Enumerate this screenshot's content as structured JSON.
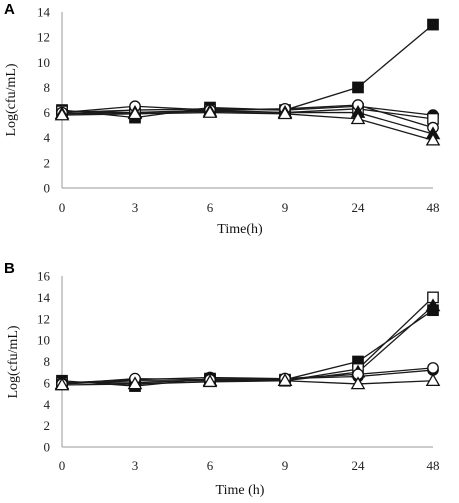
{
  "chart_data": [
    {
      "type": "line",
      "panel_label": "A",
      "categories": [
        "0",
        "3",
        "6",
        "9",
        "24",
        "48"
      ],
      "xlabel": "Time(h)",
      "ylabel": "Log(cfu/mL)",
      "ylim": [
        0,
        14
      ],
      "yticks": [
        "0",
        "2",
        "4",
        "6",
        "8",
        "10",
        "12",
        "14"
      ],
      "grid": false,
      "series": [
        {
          "marker": "filled-square",
          "values": [
            6.2,
            5.6,
            6.4,
            6.2,
            8.0,
            13.0
          ]
        },
        {
          "marker": "filled-circle",
          "values": [
            6.0,
            6.2,
            6.3,
            6.2,
            6.5,
            5.8
          ]
        },
        {
          "marker": "open-square",
          "values": [
            6.1,
            6.0,
            6.2,
            6.0,
            6.3,
            5.5
          ]
        },
        {
          "marker": "open-circle",
          "values": [
            6.0,
            6.5,
            6.2,
            6.3,
            6.6,
            4.8
          ]
        },
        {
          "marker": "filled-triangle",
          "values": [
            5.9,
            6.0,
            6.1,
            6.0,
            6.0,
            4.3
          ]
        },
        {
          "marker": "open-triangle",
          "values": [
            5.8,
            5.9,
            6.0,
            5.9,
            5.5,
            3.8
          ]
        }
      ]
    },
    {
      "type": "line",
      "panel_label": "B",
      "categories": [
        "0",
        "3",
        "6",
        "9",
        "24",
        "48"
      ],
      "xlabel": "Time (h)",
      "ylabel": "Log(cfu/mL)",
      "ylim": [
        0,
        16
      ],
      "yticks": [
        "0",
        "2",
        "4",
        "6",
        "8",
        "10",
        "12",
        "14",
        "16"
      ],
      "grid": false,
      "series": [
        {
          "marker": "filled-square",
          "values": [
            6.2,
            5.7,
            6.4,
            6.3,
            8.0,
            12.8
          ]
        },
        {
          "marker": "open-square",
          "values": [
            6.0,
            6.0,
            6.3,
            6.2,
            7.3,
            14.0
          ]
        },
        {
          "marker": "filled-triangle",
          "values": [
            5.9,
            6.2,
            6.2,
            6.2,
            7.0,
            13.2
          ]
        },
        {
          "marker": "filled-circle",
          "values": [
            6.0,
            6.3,
            6.5,
            6.4,
            6.6,
            7.2
          ]
        },
        {
          "marker": "open-circle",
          "values": [
            5.9,
            6.4,
            6.3,
            6.4,
            6.8,
            7.4
          ]
        },
        {
          "marker": "open-triangle",
          "values": [
            5.8,
            5.9,
            6.1,
            6.2,
            5.9,
            6.2
          ]
        }
      ]
    }
  ]
}
